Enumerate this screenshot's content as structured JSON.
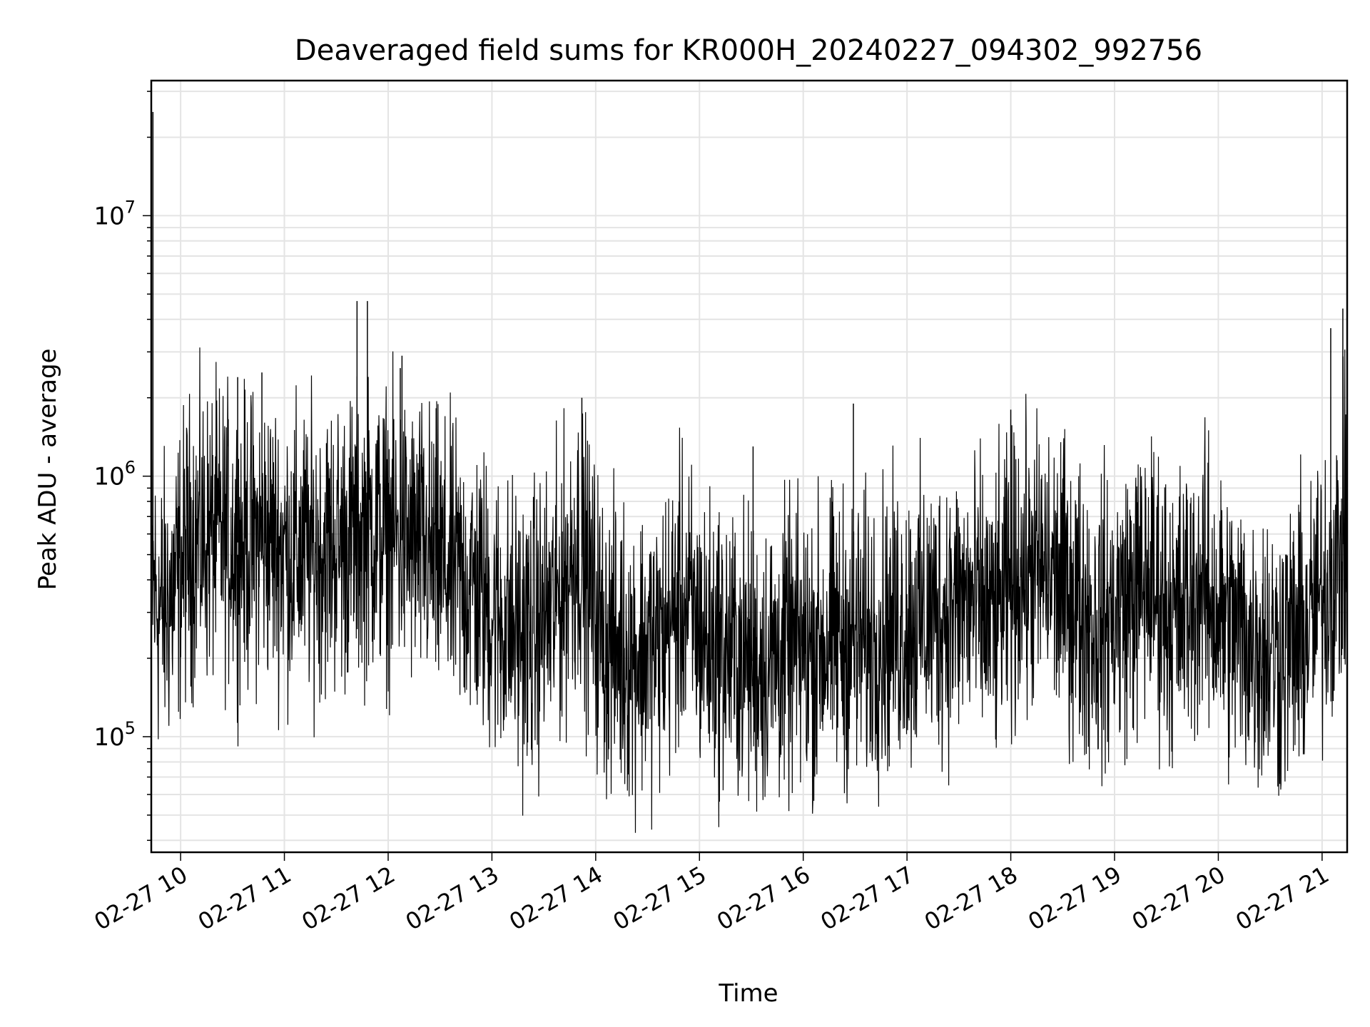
{
  "chart_data": {
    "type": "line",
    "title": "Deaveraged field sums for KR000H_20240227_094302_992756",
    "xlabel": "Time",
    "ylabel": "Peak ADU - average",
    "yscale": "log",
    "ylim": [
      36000,
      33000000
    ],
    "xlim": [
      "2024-02-27 09:43:02",
      "2024-02-27 21:14:30"
    ],
    "grid": true,
    "x_ticks": [
      "2024-02-27 10:00",
      "2024-02-27 11:00",
      "2024-02-27 12:00",
      "2024-02-27 13:00",
      "2024-02-27 14:00",
      "2024-02-27 15:00",
      "2024-02-27 16:00",
      "2024-02-27 17:00",
      "2024-02-27 18:00",
      "2024-02-27 19:00",
      "2024-02-27 20:00",
      "2024-02-27 21:00"
    ],
    "x_tick_labels": [
      "02-27 10",
      "02-27 11",
      "02-27 12",
      "02-27 13",
      "02-27 14",
      "02-27 15",
      "02-27 16",
      "02-27 17",
      "02-27 18",
      "02-27 19",
      "02-27 20",
      "02-27 21"
    ],
    "y_tick_labels": [
      {
        "value": 100000,
        "base": "10",
        "exp": "5"
      },
      {
        "value": 1000000,
        "base": "10",
        "exp": "6"
      },
      {
        "value": 10000000,
        "base": "10",
        "exp": "7"
      }
    ],
    "series": [
      {
        "color": "#000000",
        "x": [
          "2024-02-27 09:43",
          "2024-02-27 09:48",
          "2024-02-27 09:55",
          "2024-02-27 10:05",
          "2024-02-27 10:20",
          "2024-02-27 10:35",
          "2024-02-27 10:50",
          "2024-02-27 11:05",
          "2024-02-27 11:20",
          "2024-02-27 11:35",
          "2024-02-27 11:50",
          "2024-02-27 12:05",
          "2024-02-27 12:20",
          "2024-02-27 12:35",
          "2024-02-27 12:50",
          "2024-02-27 13:05",
          "2024-02-27 13:20",
          "2024-02-27 13:35",
          "2024-02-27 13:50",
          "2024-02-27 14:05",
          "2024-02-27 14:20",
          "2024-02-27 14:35",
          "2024-02-27 14:50",
          "2024-02-27 15:05",
          "2024-02-27 15:20",
          "2024-02-27 15:35",
          "2024-02-27 15:50",
          "2024-02-27 16:05",
          "2024-02-27 16:20",
          "2024-02-27 16:35",
          "2024-02-27 16:50",
          "2024-02-27 17:05",
          "2024-02-27 17:20",
          "2024-02-27 17:35",
          "2024-02-27 17:50",
          "2024-02-27 18:05",
          "2024-02-27 18:20",
          "2024-02-27 18:35",
          "2024-02-27 18:50",
          "2024-02-27 19:05",
          "2024-02-27 19:20",
          "2024-02-27 19:35",
          "2024-02-27 19:50",
          "2024-02-27 20:05",
          "2024-02-27 20:20",
          "2024-02-27 20:35",
          "2024-02-27 20:50",
          "2024-02-27 21:05",
          "2024-02-27 21:14"
        ],
        "y": [
          400000,
          300000,
          350000,
          550000,
          600000,
          550000,
          580000,
          500000,
          520000,
          560000,
          620000,
          580000,
          520000,
          430000,
          380000,
          280000,
          240000,
          300000,
          550000,
          230000,
          210000,
          220000,
          330000,
          230000,
          210000,
          190000,
          210000,
          220000,
          240000,
          230000,
          260000,
          280000,
          300000,
          330000,
          280000,
          430000,
          430000,
          350000,
          260000,
          320000,
          400000,
          280000,
          380000,
          270000,
          230000,
          210000,
          250000,
          400000,
          600000
        ]
      }
    ],
    "spikes": {
      "x": [
        "2024-02-27 09:44",
        "2024-02-27 10:33",
        "2024-02-27 10:47",
        "2024-02-27 11:42",
        "2024-02-27 11:48",
        "2024-02-27 12:07",
        "2024-02-27 12:08",
        "2024-02-27 13:52",
        "2024-02-27 15:31",
        "2024-02-27 16:29",
        "2024-02-27 18:00",
        "2024-02-27 21:05",
        "2024-02-27 21:12"
      ],
      "y": [
        25000000,
        2400000,
        2500000,
        4700000,
        4700000,
        2600000,
        2900000,
        2000000,
        1300000,
        1900000,
        1800000,
        3700000,
        4400000
      ]
    }
  }
}
